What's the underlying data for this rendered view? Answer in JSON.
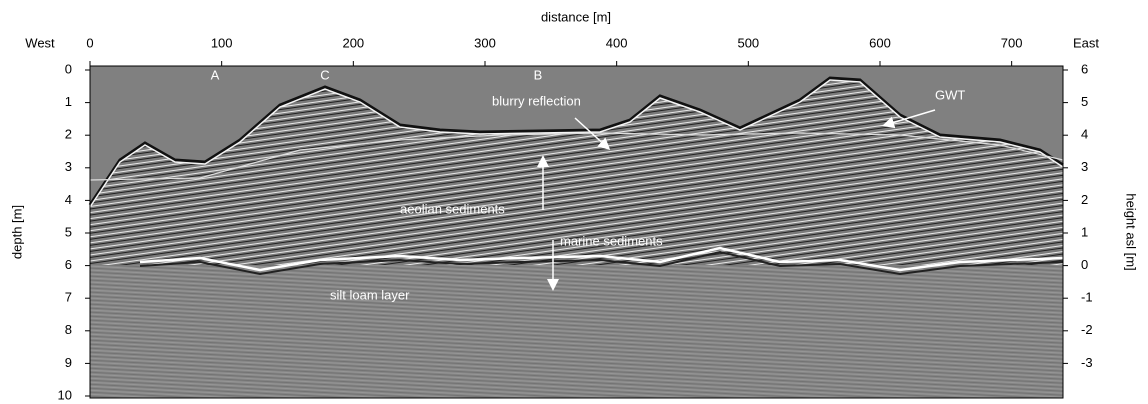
{
  "chart_data": {
    "type": "radargram",
    "xlabel": "distance [m]",
    "ylabel": "depth [m]",
    "y2label": "height asl [m]",
    "left_label": "West",
    "right_label": "East",
    "xlim": [
      0,
      739
    ],
    "xticks": [
      0,
      100,
      200,
      300,
      400,
      500,
      600,
      700
    ],
    "ylim": [
      0,
      10
    ],
    "yticks": [
      0,
      1,
      2,
      3,
      4,
      5,
      6,
      7,
      8,
      9,
      10
    ],
    "y2lim": [
      6,
      -4
    ],
    "y2ticks": [
      6,
      5,
      4,
      3,
      2,
      1,
      0,
      -1,
      -2,
      -3
    ],
    "annotations": [
      "A",
      "C",
      "B",
      "blurry reflection",
      "GWT",
      "aeolian sediments",
      "marine sediments",
      "silt loam layer"
    ]
  }
}
